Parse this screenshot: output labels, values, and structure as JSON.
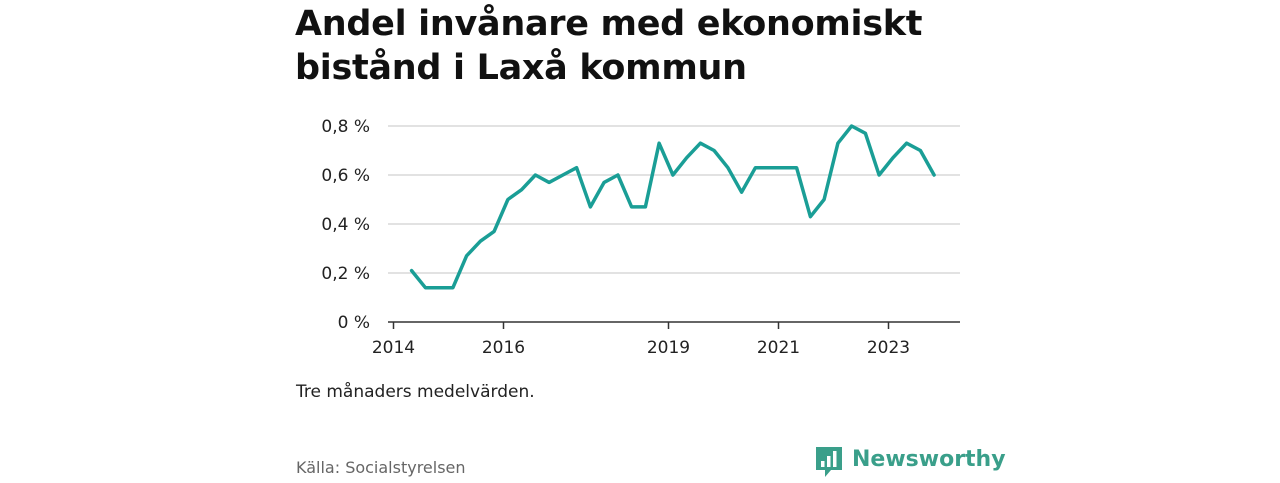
{
  "chart_data": {
    "type": "line",
    "title": "Andel invånare med ekonomiskt bistånd i Laxå kommun",
    "note": "Tre månaders medelvärden.",
    "source": "Källa: Socialstyrelsen",
    "ylim": [
      0,
      0.8
    ],
    "y_ticks": [
      0,
      0.2,
      0.4,
      0.6,
      0.8
    ],
    "y_tick_labels": [
      "0 %",
      "0,2 %",
      "0,4 %",
      "0,6 %",
      "0,8 %"
    ],
    "x_ticks": [
      2014,
      2016,
      2019,
      2021,
      2023
    ],
    "x_tick_labels": [
      "2014",
      "2016",
      "2019",
      "2021",
      "2023"
    ],
    "xlim": [
      2013.9,
      2024.3
    ],
    "grid": true,
    "color": "#1a9e96",
    "series": [
      {
        "x": [
          2014.33,
          2014.58,
          2014.83,
          2015.08,
          2015.33,
          2015.58,
          2015.83,
          2016.08,
          2016.33,
          2016.58,
          2016.83,
          2017.08,
          2017.33,
          2017.58,
          2017.83,
          2018.08,
          2018.33,
          2018.58,
          2018.83,
          2019.08,
          2019.33,
          2019.58,
          2019.83,
          2020.08,
          2020.33,
          2020.58,
          2020.83,
          2021.08,
          2021.33,
          2021.58,
          2021.83,
          2022.08,
          2022.33,
          2022.58,
          2022.83,
          2023.08,
          2023.33,
          2023.58,
          2023.83
        ],
        "values": [
          0.21,
          0.14,
          0.14,
          0.14,
          0.27,
          0.33,
          0.37,
          0.5,
          0.54,
          0.6,
          0.57,
          0.6,
          0.63,
          0.47,
          0.57,
          0.6,
          0.47,
          0.47,
          0.73,
          0.6,
          0.67,
          0.73,
          0.7,
          0.63,
          0.53,
          0.63,
          0.63,
          0.63,
          0.63,
          0.43,
          0.5,
          0.73,
          0.8,
          0.77,
          0.6,
          0.67,
          0.73,
          0.7,
          0.6
        ]
      }
    ]
  },
  "brand": {
    "name": "Newsworthy",
    "icon": "newsworthy-logo-icon",
    "color": "#3a9f8a"
  }
}
